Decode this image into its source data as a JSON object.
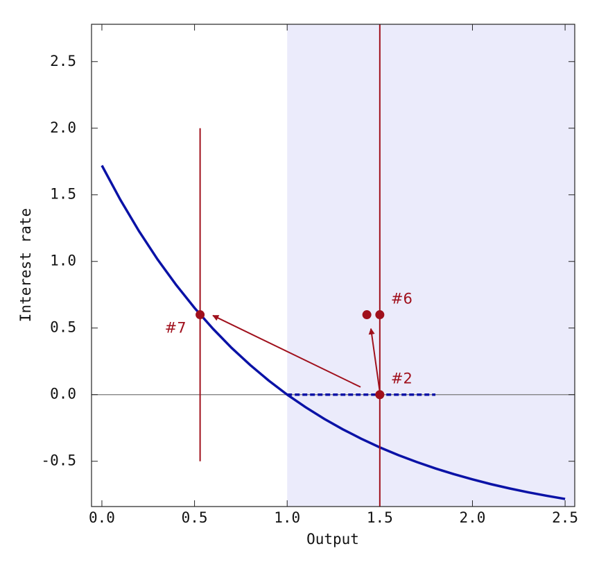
{
  "chart_data": {
    "type": "line",
    "x_label": "Output",
    "y_label": "Interest rate",
    "xlim": [
      -0.056,
      2.552
    ],
    "ylim": [
      -0.84,
      2.78
    ],
    "xticks": [
      {
        "value": 0,
        "label": "0.0"
      },
      0.5,
      {
        "value": 1,
        "label": "1.0"
      },
      1.5,
      {
        "value": 2,
        "label": "2.0"
      },
      2.5
    ],
    "yticks": [
      -0.5,
      {
        "value": 0,
        "label": "0.0"
      },
      0.5,
      {
        "value": 1,
        "label": "1.0"
      },
      1.5,
      {
        "value": 2,
        "label": "2.0"
      },
      2.5
    ],
    "shaded_x": [
      1.0,
      2.552
    ],
    "shade_color": "#ebebfb",
    "hline": 0,
    "curve": {
      "color": "#0a12a6",
      "x": [
        0,
        0.1,
        0.2,
        0.3,
        0.4,
        0.5,
        0.6,
        0.7,
        0.8,
        0.9,
        1.0,
        1.1,
        1.2,
        1.3,
        1.4,
        1.5,
        1.6,
        1.7,
        1.8,
        1.9,
        2.0,
        2.1,
        2.2,
        2.3,
        2.4,
        2.5
      ],
      "y": [
        1.72,
        1.462,
        1.228,
        1.016,
        0.825,
        0.651,
        0.494,
        0.351,
        0.223,
        0.106,
        0.0,
        -0.095,
        -0.182,
        -0.26,
        -0.331,
        -0.396,
        -0.454,
        -0.506,
        -0.554,
        -0.597,
        -0.636,
        -0.672,
        -0.704,
        -0.733,
        -0.759,
        -0.783
      ]
    },
    "dashed_segment": {
      "color": "#0a12a6",
      "x": [
        1.0,
        1.8
      ],
      "y": [
        0,
        0
      ]
    },
    "marker_color": "#a0101c",
    "vlines": [
      {
        "x": 0.53,
        "y": [
          -0.5,
          2.0
        ]
      },
      {
        "x": 1.5,
        "y": [
          -0.84,
          2.78
        ]
      }
    ],
    "points": [
      {
        "x": 0.53,
        "y": 0.6,
        "label": "#7",
        "label_at": "left"
      },
      {
        "x": 1.43,
        "y": 0.6
      },
      {
        "x": 1.5,
        "y": 0.6,
        "label": "#6",
        "label_at": "upper-right"
      },
      {
        "x": 1.5,
        "y": 0,
        "label": "#2",
        "label_at": "upper-right"
      }
    ],
    "arrows": [
      {
        "from": [
          1.396,
          0.057
        ],
        "to": [
          0.599,
          0.594
        ]
      },
      {
        "from": [
          1.5,
          0.02
        ],
        "to": [
          1.452,
          0.495
        ]
      }
    ]
  }
}
